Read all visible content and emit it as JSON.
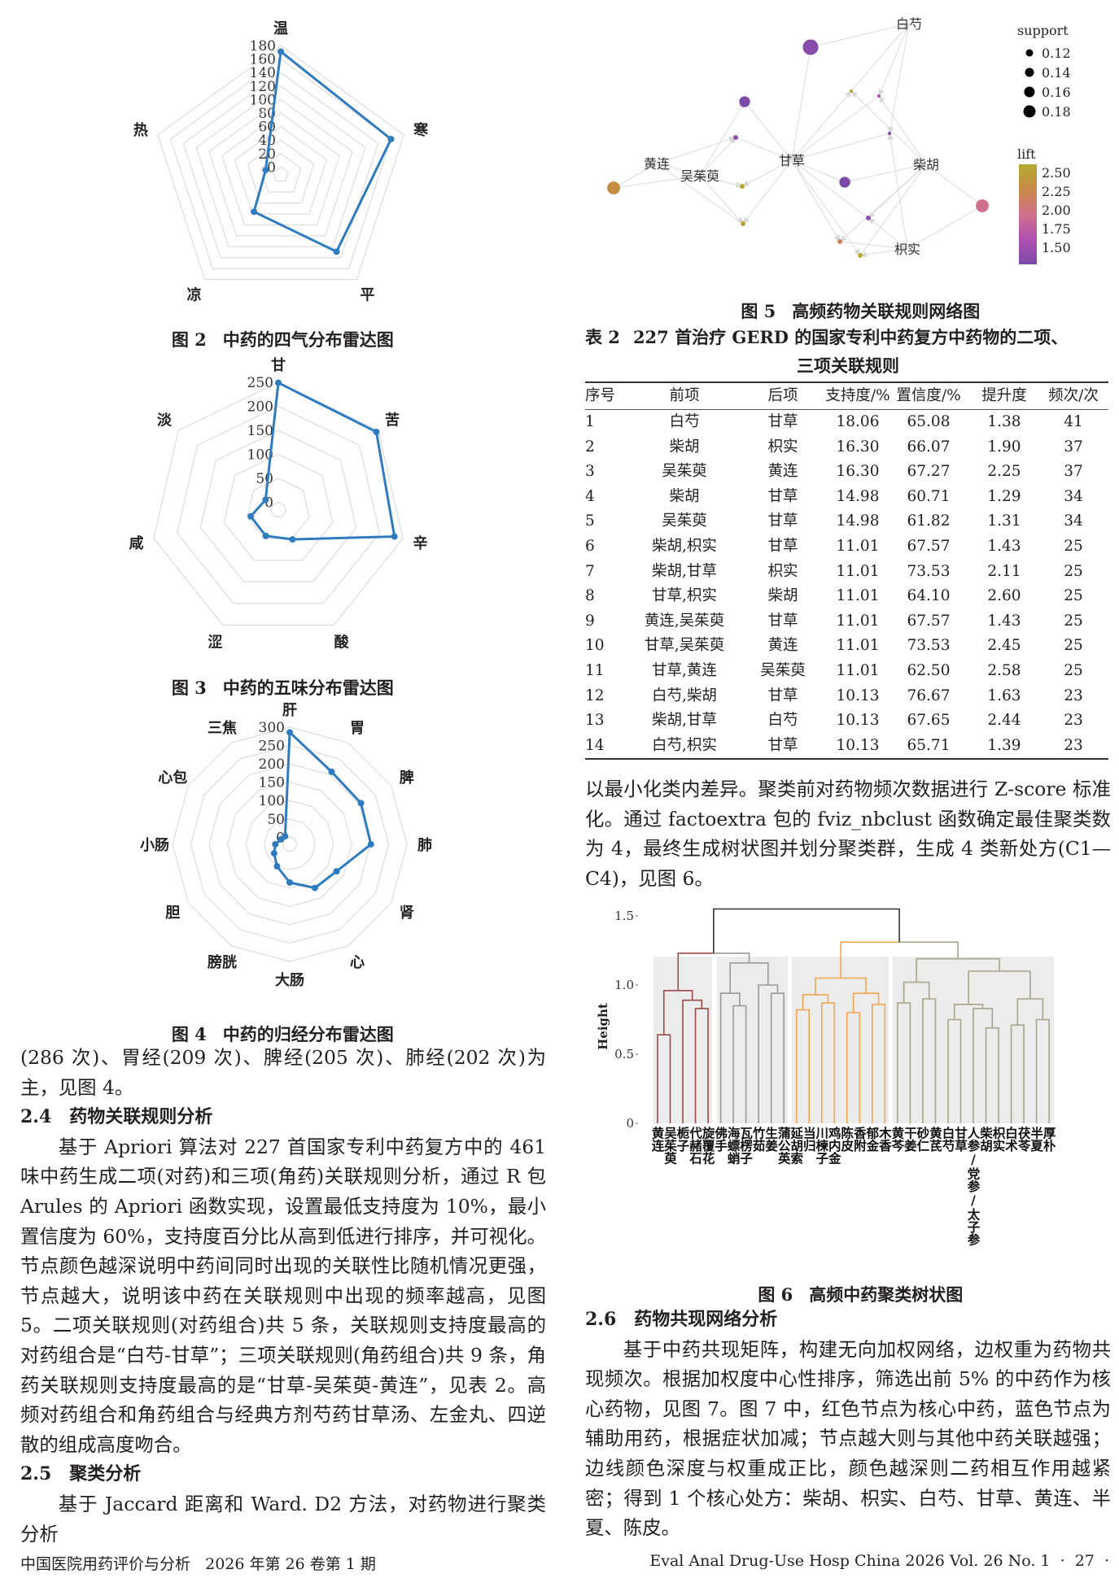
{
  "figures": {
    "fig2": {
      "num": "图 2",
      "text": "中药的四气分布雷达图"
    },
    "fig3": {
      "num": "图 3",
      "text": "中药的五味分布雷达图"
    },
    "fig4": {
      "num": "图 4",
      "text": "中药的归经分布雷达图"
    },
    "fig5": {
      "num": "图 5",
      "text": "高频药物关联规则网络图"
    },
    "fig6": {
      "num": "图 6",
      "text": "高频中药聚类树状图"
    }
  },
  "chart_data": [
    {
      "type": "radar",
      "title": "",
      "axes": [
        "温",
        "寒",
        "平",
        "凉",
        "热"
      ],
      "values": [
        171,
        160,
        129,
        56,
        12
      ],
      "ticks": [
        "0",
        "20",
        "40",
        "60",
        "80",
        "100",
        "120",
        "140",
        "160",
        "180"
      ],
      "range": [
        0,
        180
      ],
      "color": "#2f7bbf"
    },
    {
      "type": "radar",
      "title": "",
      "axes": [
        "甘",
        "苦",
        "辛",
        "酸",
        "涩",
        "咸",
        "淡"
      ],
      "values": [
        249,
        245,
        232,
        52,
        44,
        43,
        18
      ],
      "ticks": [
        "0",
        "50",
        "100",
        "150",
        "200",
        "250"
      ],
      "range": [
        0,
        250
      ],
      "color": "#2f7bbf"
    },
    {
      "type": "radar",
      "title": "",
      "axes": [
        "肝",
        "胃",
        "脾",
        "肺",
        "肾",
        "心",
        "大肠",
        "膀胱",
        "胆",
        "小肠",
        "心包",
        "三焦"
      ],
      "values": [
        286,
        209,
        205,
        202,
        128,
        118,
        85,
        50,
        30,
        20,
        8,
        6
      ],
      "ticks": [
        "0",
        "50",
        "100",
        "150",
        "200",
        "250",
        "300"
      ],
      "range": [
        0,
        300
      ],
      "color": "#2f7bbf"
    },
    {
      "type": "network",
      "title": "",
      "items": [
        "白芍",
        "甘草",
        "黄连",
        "吴茱萸",
        "柴胡",
        "枳实"
      ],
      "node_source": "table.rows",
      "support_legend": {
        "title": "support",
        "values": [
          "0.12",
          "0.14",
          "0.16",
          "0.18"
        ]
      },
      "lift_legend": {
        "title": "lift",
        "values": [
          "2.50",
          "2.25",
          "2.00",
          "1.75",
          "1.50"
        ]
      },
      "lift_colors": [
        "#7a4aa8",
        "#b050b0",
        "#d0708a",
        "#c98a48",
        "#b3ab2e"
      ]
    },
    {
      "type": "dendrogram",
      "title": "",
      "ylabel": "Height",
      "ylim": [
        0,
        1.55
      ],
      "yticks": [
        "0",
        "0.5",
        "1.0",
        "1.5"
      ],
      "leaves": [
        "黄连",
        "吴茱萸",
        "栀子",
        "代赭石",
        "旋覆花",
        "佛手",
        "海螵蛸",
        "瓦楞子",
        "竹茹",
        "生姜",
        "蒲公英",
        "延胡索",
        "当归",
        "川楝子",
        "鸡内金",
        "陈皮",
        "香附",
        "郁金",
        "木香",
        "黄芩",
        "干姜",
        "砂仁",
        "黄芪",
        "白芍",
        "甘草",
        "人参/党参/太子参",
        "柴胡",
        "枳实",
        "白术",
        "茯苓",
        "半夏",
        "厚朴"
      ],
      "cluster_colors": [
        "#9a4a48",
        "#9a9a9a",
        "#f0a650",
        "#a6a58a"
      ],
      "tree": {
        "h": 1.55,
        "c": [
          {
            "h": 1.23,
            "c": [
              {
                "cluster": 0,
                "h": 0.96,
                "c": [
                  {
                    "h": 0.64,
                    "c": [
                      "黄连",
                      "吴茱萸"
                    ]
                  },
                  {
                    "h": 0.89,
                    "c": [
                      "栀子",
                      {
                        "h": 0.83,
                        "c": [
                          "代赭石",
                          "旋覆花"
                        ]
                      }
                    ]
                  }
                ]
              },
              {
                "cluster": 1,
                "h": 1.16,
                "c": [
                  {
                    "h": 0.94,
                    "c": [
                      "佛手",
                      {
                        "h": 0.85,
                        "c": [
                          "海螵蛸",
                          "瓦楞子"
                        ]
                      }
                    ]
                  },
                  {
                    "h": 1.0,
                    "c": [
                      "竹茹",
                      {
                        "h": 0.94,
                        "c": [
                          "生姜",
                          "蒲公英"
                        ]
                      }
                    ]
                  }
                ]
              }
            ]
          },
          {
            "h": 1.31,
            "c": [
              {
                "cluster": 2,
                "h": 1.05,
                "c": [
                  {
                    "h": 0.93,
                    "c": [
                      {
                        "h": 0.82,
                        "c": [
                          "延胡索",
                          "当归"
                        ]
                      },
                      {
                        "h": 0.87,
                        "c": [
                          "川楝子",
                          "鸡内金"
                        ]
                      }
                    ]
                  },
                  {
                    "h": 0.94,
                    "c": [
                      {
                        "h": 0.8,
                        "c": [
                          "陈皮",
                          "香附"
                        ]
                      },
                      {
                        "h": 0.86,
                        "c": [
                          "郁金",
                          "木香"
                        ]
                      }
                    ]
                  }
                ]
              },
              {
                "cluster": 3,
                "h": 1.19,
                "c": [
                  {
                    "h": 1.02,
                    "c": [
                      {
                        "h": 0.87,
                        "c": [
                          "黄芩",
                          "干姜"
                        ]
                      },
                      {
                        "h": 0.9,
                        "c": [
                          "砂仁",
                          "黄芪"
                        ]
                      }
                    ]
                  },
                  {
                    "h": 1.1,
                    "c": [
                      {
                        "h": 0.86,
                        "c": [
                          {
                            "h": 0.75,
                            "c": [
                              "白芍",
                              "甘草"
                            ]
                          },
                          {
                            "h": 0.83,
                            "c": [
                              "人参/党参/太子参",
                              {
                                "h": 0.69,
                                "c": [
                                  "柴胡",
                                  "枳实"
                                ]
                              }
                            ]
                          }
                        ]
                      },
                      {
                        "h": 0.9,
                        "c": [
                          {
                            "h": 0.71,
                            "c": [
                              "白术",
                              "茯苓"
                            ]
                          },
                          {
                            "h": 0.75,
                            "c": [
                              "半夏",
                              "厚朴"
                            ]
                          }
                        ]
                      }
                    ]
                  }
                ]
              }
            ]
          }
        ]
      }
    }
  ],
  "table": {
    "num": "表 2",
    "title_line1": "227 首治疗 GERD 的国家专利中药复方中药物的二项、",
    "title_line2": "三项关联规则",
    "headers": [
      "序号",
      "前项",
      "后项",
      "支持度/%",
      "置信度/%",
      "提升度",
      "频次/次"
    ],
    "rows": [
      [
        "1",
        "白芍",
        "甘草",
        "18.06",
        "65.08",
        "1.38",
        "41"
      ],
      [
        "2",
        "柴胡",
        "枳实",
        "16.30",
        "66.07",
        "1.90",
        "37"
      ],
      [
        "3",
        "吴茱萸",
        "黄连",
        "16.30",
        "67.27",
        "2.25",
        "37"
      ],
      [
        "4",
        "柴胡",
        "甘草",
        "14.98",
        "60.71",
        "1.29",
        "34"
      ],
      [
        "5",
        "吴茱萸",
        "甘草",
        "14.98",
        "61.82",
        "1.31",
        "34"
      ],
      [
        "6",
        "柴胡,枳实",
        "甘草",
        "11.01",
        "67.57",
        "1.43",
        "25"
      ],
      [
        "7",
        "柴胡,甘草",
        "枳实",
        "11.01",
        "73.53",
        "2.11",
        "25"
      ],
      [
        "8",
        "甘草,枳实",
        "柴胡",
        "11.01",
        "64.10",
        "2.60",
        "25"
      ],
      [
        "9",
        "黄连,吴茱萸",
        "甘草",
        "11.01",
        "67.57",
        "1.43",
        "25"
      ],
      [
        "10",
        "甘草,吴茱萸",
        "黄连",
        "11.01",
        "73.53",
        "2.45",
        "25"
      ],
      [
        "11",
        "甘草,黄连",
        "吴茱萸",
        "11.01",
        "62.50",
        "2.58",
        "25"
      ],
      [
        "12",
        "白芍,柴胡",
        "甘草",
        "10.13",
        "76.67",
        "1.63",
        "23"
      ],
      [
        "13",
        "柴胡,甘草",
        "白芍",
        "10.13",
        "67.65",
        "2.44",
        "23"
      ],
      [
        "14",
        "白芍,枳实",
        "甘草",
        "10.13",
        "65.71",
        "1.39",
        "23"
      ]
    ]
  },
  "body": {
    "left_p1": "(286 次)、胃经(209 次)、脾经(205 次)、肺经(202 次)为主，见图 4。",
    "h24_num": "2.4",
    "h24_text": "药物关联规则分析",
    "left_p2": "基于 Apriori 算法对 227 首国家专利中药复方中的 461 味中药生成二项(对药)和三项(角药)关联规则分析，通过 R 包 Arules 的 Apriori 函数实现，设置最低支持度为 10%，最小置信度为 60%，支持度百分比从高到低进行排序，并可视化。节点颜色越深说明中药间同时出现的关联性比随机情况更强，节点越大，说明该中药在关联规则中出现的频率越高，见图 5。二项关联规则(对药组合)共 5 条，关联规则支持度最高的对药组合是“白芍-甘草”；三项关联规则(角药组合)共 9 条，角药关联规则支持度最高的是“甘草-吴茱萸-黄连”，见表 2。高频对药组合和角药组合与经典方剂芍药甘草汤、左金丸、四逆散的组成高度吻合。",
    "h25_num": "2.5",
    "h25_text": "聚类分析",
    "left_p3": "基于 Jaccard 距离和 Ward. D2 方法，对药物进行聚类分析",
    "right_p1": "以最小化类内差异。聚类前对药物频次数据进行 Z-score 标准化。通过 factoextra 包的 fviz_nbclust 函数确定最佳聚类数为 4，最终生成树状图并划分聚类群，生成 4 类新处方(C1—C4)，见图 6。",
    "h26_num": "2.6",
    "h26_text": "药物共现网络分析",
    "right_p2": "基于中药共现矩阵，构建无向加权网络，边权重为药物共现频次。根据加权度中心性排序，筛选出前 5% 的中药作为核心药物，见图 7。图 7 中，红色节点为核心中药，蓝色节点为辅助用药，根据症状加减；节点越大则与其他中药关联越强；边线颜色深度与权重成正比，颜色越深则二药相互作用越紧密；得到 1 个核心处方：柴胡、枳实、白芍、甘草、黄连、半夏、陈皮。"
  },
  "footer": {
    "left": "中国医院用药评价与分析   2026 年第 26 卷第 1 期",
    "right": "Eval Anal Drug-Use Hosp China 2026 Vol. 26 No. 1  ·  27  ·"
  }
}
